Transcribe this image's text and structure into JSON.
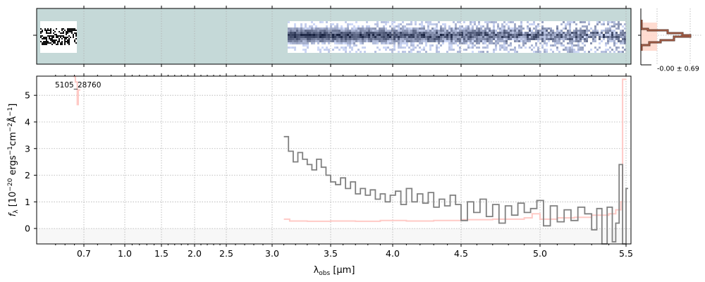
{
  "chart_data": {
    "type": "line",
    "object_id": "5105_28760",
    "xlabel": {
      "main": "λ",
      "sub": "obs",
      "unit": " [μm]"
    },
    "ylabel": {
      "a": "f",
      "sub": "λ",
      "b": " [10",
      "e1": "−20",
      "c": " ergs",
      "e2": "−1",
      "d": "cm",
      "e3": "−2",
      "e": "Å",
      "e4": "−1",
      "f": "]"
    },
    "xticks": [
      "0.7",
      "1.0",
      "1.5",
      "2.0",
      "2.5",
      "3.0",
      "3.5",
      "4.0",
      "4.5",
      "5.0",
      "5.5"
    ],
    "xtick_values": [
      0.7,
      1.0,
      1.5,
      2.0,
      2.5,
      3.0,
      3.5,
      4.0,
      4.5,
      5.0,
      5.5
    ],
    "yticks": [
      "0",
      "1",
      "2",
      "3",
      "4",
      "5"
    ],
    "ylim": [
      -0.58,
      5.72
    ],
    "grid": true,
    "series": [
      {
        "name": "flux",
        "color": "#808080",
        "x": [
          3.1,
          3.14,
          3.18,
          3.22,
          3.26,
          3.3,
          3.34,
          3.38,
          3.42,
          3.46,
          3.5,
          3.54,
          3.58,
          3.62,
          3.66,
          3.7,
          3.74,
          3.78,
          3.82,
          3.86,
          3.9,
          3.94,
          3.98,
          4.02,
          4.06,
          4.1,
          4.14,
          4.18,
          4.22,
          4.26,
          4.3,
          4.34,
          4.38,
          4.42,
          4.46,
          4.5,
          4.54,
          4.58,
          4.62,
          4.66,
          4.7,
          4.74,
          4.78,
          4.82,
          4.86,
          4.9,
          4.94,
          4.98,
          5.02,
          5.06,
          5.1,
          5.14,
          5.18,
          5.22,
          5.26,
          5.3,
          5.33,
          5.36,
          5.39,
          5.42,
          5.44,
          5.46,
          5.48,
          5.5
        ],
        "y": [
          3.45,
          2.9,
          2.5,
          2.85,
          2.6,
          2.4,
          2.2,
          2.6,
          2.3,
          2.0,
          1.75,
          1.65,
          1.9,
          1.5,
          1.75,
          1.3,
          1.5,
          1.25,
          1.45,
          1.1,
          1.3,
          1.0,
          1.25,
          1.4,
          0.9,
          1.5,
          1.0,
          1.3,
          0.95,
          1.35,
          0.8,
          1.1,
          0.85,
          1.25,
          0.9,
          0.3,
          1.0,
          0.6,
          1.1,
          0.45,
          0.9,
          0.2,
          0.85,
          0.5,
          0.95,
          0.6,
          0.75,
          1.05,
          0.1,
          0.85,
          0.25,
          0.7,
          0.3,
          0.8,
          0.55,
          -0.05,
          0.75,
          -0.6,
          0.8,
          -0.5,
          0.2,
          2.4,
          -0.6,
          1.5
        ]
      },
      {
        "name": "error",
        "color": "#ffc4c0",
        "x": [
          3.1,
          3.15,
          3.3,
          3.5,
          3.7,
          3.9,
          4.1,
          4.3,
          4.5,
          4.7,
          4.9,
          4.95,
          5.0,
          5.1,
          5.2,
          5.3,
          5.4,
          5.44,
          5.47,
          5.48,
          5.49
        ],
        "y": [
          0.35,
          0.28,
          0.27,
          0.28,
          0.27,
          0.3,
          0.28,
          0.3,
          0.33,
          0.35,
          0.4,
          0.55,
          0.35,
          0.4,
          0.42,
          0.5,
          0.55,
          0.7,
          1.0,
          5.6,
          5.6
        ]
      },
      {
        "name": "error-blue-end",
        "color": "#ffc4c0",
        "x": [
          0.645,
          0.655,
          0.665,
          0.67
        ],
        "y": [
          5.7,
          5.5,
          4.65,
          5.2
        ]
      }
    ],
    "histogram_label": "-0.00 ± 0.69"
  }
}
